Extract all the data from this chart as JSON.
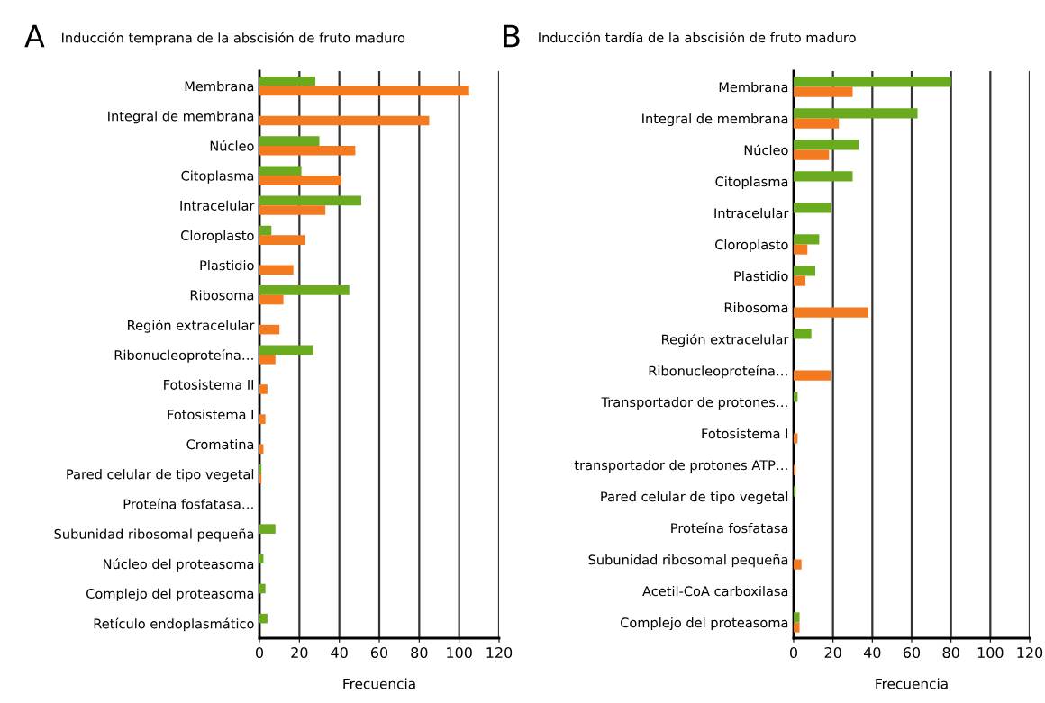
{
  "chart_data": [
    {
      "type": "bar",
      "orientation": "horizontal",
      "title": "Inducción temprana de la abscisión de fruto maduro",
      "xlabel": "Frecuencia",
      "annotations": [
        "A"
      ],
      "categories": [
        "Membrana",
        "Integral de membrana",
        "Núcleo",
        "Citoplasma",
        "Intracelular",
        "Cloroplasto",
        "Plastidio",
        "Ribosoma",
        "Región extracelular",
        "Ribonucleoproteína…",
        "Fotosistema II",
        "Fotosistema I",
        "Cromatina",
        "Pared celular de tipo vegetal",
        "Proteína fosfatasa…",
        "Subunidad ribosomal pequeña",
        "Núcleo del proteasoma",
        "Complejo del proteasoma",
        "Retículo endoplasmático"
      ],
      "series": [
        {
          "color": "#6aaa1e",
          "values": [
            28,
            null,
            30,
            21,
            51,
            6,
            null,
            45,
            null,
            27,
            null,
            null,
            null,
            1,
            null,
            8,
            2,
            3,
            4
          ]
        },
        {
          "color": "#f47a20",
          "values": [
            105,
            85,
            48,
            41,
            33,
            23,
            17,
            12,
            10,
            8,
            4,
            3,
            2,
            1,
            null,
            null,
            null,
            null,
            null
          ]
        }
      ],
      "xlim": [
        0,
        120
      ],
      "xticks": [
        0,
        20,
        40,
        60,
        80,
        100,
        120
      ],
      "grid": "x"
    },
    {
      "type": "bar",
      "orientation": "horizontal",
      "title": "Inducción tardía de la abscisión de fruto maduro",
      "xlabel": "Frecuencia",
      "annotations": [
        "B"
      ],
      "categories": [
        "Membrana",
        "Integral de membrana",
        "Núcleo",
        "Citoplasma",
        "Intracelular",
        "Cloroplasto",
        "Plastidio",
        "Ribosoma",
        "Región extracelular",
        "Ribonucleoproteína…",
        "Transportador de protones…",
        "Fotosistema I",
        "transportador de protones ATP…",
        "Pared celular de tipo vegetal",
        "Proteína fosfatasa",
        "Subunidad ribosomal pequeña",
        "Acetil-CoA carboxilasa",
        "Complejo del proteasoma"
      ],
      "series": [
        {
          "color": "#6aaa1e",
          "values": [
            80,
            63,
            33,
            30,
            19,
            13,
            11,
            null,
            9,
            null,
            2,
            null,
            null,
            1,
            null,
            null,
            null,
            3
          ]
        },
        {
          "color": "#f47a20",
          "values": [
            30,
            23,
            18,
            null,
            null,
            7,
            6,
            38,
            null,
            19,
            null,
            2,
            1,
            null,
            null,
            4,
            null,
            3
          ]
        }
      ],
      "xlim": [
        0,
        120
      ],
      "xticks": [
        0,
        20,
        40,
        60,
        80,
        100,
        120
      ],
      "grid": "x"
    }
  ]
}
